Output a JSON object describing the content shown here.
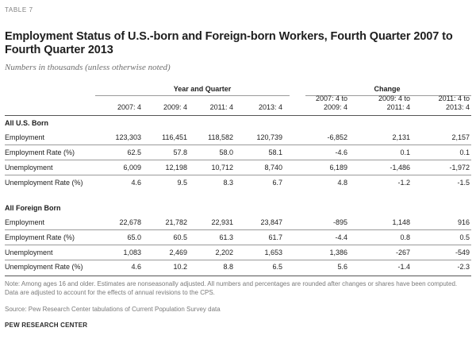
{
  "table_label": "TABLE 7",
  "title": "Employment Status of U.S.-born  and Foreign-born Workers, Fourth Quarter 2007 to Fourth Quarter 2013",
  "subtitle": "Numbers in thousands (unless otherwise noted)",
  "group_headers": {
    "year_quarter": "Year and Quarter",
    "change": "Change"
  },
  "columns": {
    "c1": "2007: 4",
    "c2": "2009: 4",
    "c3": "2011: 4",
    "c4": "2013: 4",
    "c5": [
      "2007: 4 to",
      "2009: 4"
    ],
    "c6": [
      "2009: 4 to",
      "2011: 4"
    ],
    "c7": [
      "2011: 4 to",
      "2013: 4"
    ]
  },
  "sections": [
    {
      "title": "All U.S. Born",
      "rows": [
        {
          "label": "Employment",
          "values": [
            "123,303",
            "116,451",
            "118,582",
            "120,739",
            "-6,852",
            "2,131",
            "2,157"
          ]
        },
        {
          "label": "Employment Rate (%)",
          "values": [
            "62.5",
            "57.8",
            "58.0",
            "58.1",
            "-4.6",
            "0.1",
            "0.1"
          ]
        },
        {
          "label": "Unemployment",
          "values": [
            "6,009",
            "12,198",
            "10,712",
            "8,740",
            "6,189",
            "-1,486",
            "-1,972"
          ]
        },
        {
          "label": "Unemployment Rate (%)",
          "values": [
            "4.6",
            "9.5",
            "8.3",
            "6.7",
            "4.8",
            "-1.2",
            "-1.5"
          ]
        }
      ]
    },
    {
      "title": "All Foreign Born",
      "rows": [
        {
          "label": "Employment",
          "values": [
            "22,678",
            "21,782",
            "22,931",
            "23,847",
            "-895",
            "1,148",
            "916"
          ]
        },
        {
          "label": "Employment Rate (%)",
          "values": [
            "65.0",
            "60.5",
            "61.3",
            "61.7",
            "-4.4",
            "0.8",
            "0.5"
          ]
        },
        {
          "label": "Unemployment",
          "values": [
            "1,083",
            "2,469",
            "2,202",
            "1,653",
            "1,386",
            "-267",
            "-549"
          ]
        },
        {
          "label": "Unemployment Rate (%)",
          "values": [
            "4.6",
            "10.2",
            "8.8",
            "6.5",
            "5.6",
            "-1.4",
            "-2.3"
          ]
        }
      ]
    }
  ],
  "note": "Note: Among ages 16 and older. Estimates are nonseasonally adjusted. All numbers and percentages are rounded after changes or shares have been computed. Data are adjusted to account for the effects of annual revisions to the CPS.",
  "source": "Source: Pew Research Center tabulations of Current Population Survey data",
  "org": "PEW RESEARCH CENTER"
}
